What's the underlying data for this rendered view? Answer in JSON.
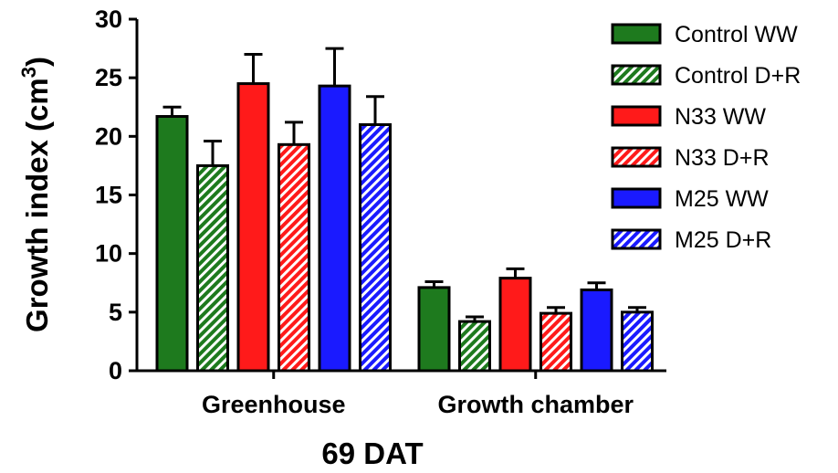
{
  "chart_data": {
    "type": "bar",
    "categories": [
      "Greenhouse",
      "Growth chamber"
    ],
    "xlabel": "69 DAT",
    "ylabel": "Growth index (cm",
    "ylabel_sup": "3",
    "ylabel_close": ")",
    "ylim": [
      0,
      30
    ],
    "yticks": [
      0,
      5,
      10,
      15,
      20,
      25,
      30
    ],
    "ytick_labels": [
      "0",
      "5",
      "10",
      "15",
      "20",
      "25",
      "30"
    ],
    "grid": false,
    "legend_position": "top-right",
    "series": [
      {
        "name": "Control WW",
        "color": "#1e7a1e",
        "hatched": false,
        "values": [
          21.7,
          7.1
        ],
        "errors": [
          0.8,
          0.5
        ]
      },
      {
        "name": "Control D+R",
        "color": "#1e7a1e",
        "hatched": true,
        "values": [
          17.5,
          4.2
        ],
        "errors": [
          2.1,
          0.4
        ]
      },
      {
        "name": "N33 WW",
        "color": "#ff1a1a",
        "hatched": false,
        "values": [
          24.5,
          7.9
        ],
        "errors": [
          2.5,
          0.8
        ]
      },
      {
        "name": "N33 D+R",
        "color": "#ff1a1a",
        "hatched": true,
        "values": [
          19.3,
          4.9
        ],
        "errors": [
          1.9,
          0.5
        ]
      },
      {
        "name": "M25 WW",
        "color": "#1a1aff",
        "hatched": false,
        "values": [
          24.3,
          6.9
        ],
        "errors": [
          3.2,
          0.6
        ]
      },
      {
        "name": "M25 D+R",
        "color": "#1a1aff",
        "hatched": true,
        "values": [
          21.0,
          5.0
        ],
        "errors": [
          2.4,
          0.4
        ]
      }
    ]
  }
}
